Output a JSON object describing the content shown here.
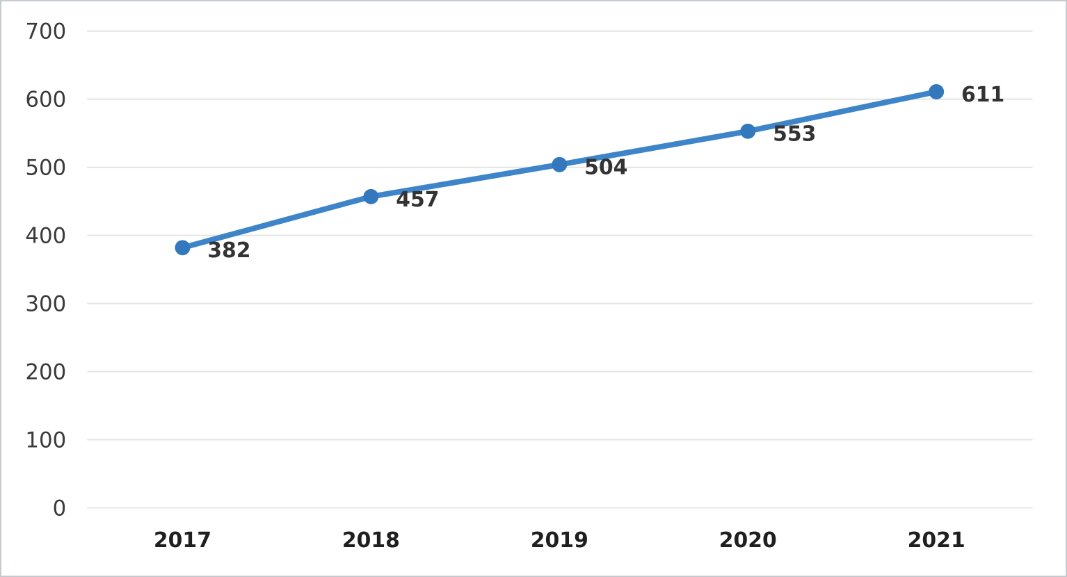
{
  "chart_data": {
    "type": "line",
    "categories": [
      "2017",
      "2018",
      "2019",
      "2020",
      "2021"
    ],
    "values": [
      382,
      457,
      504,
      553,
      611
    ],
    "data_labels": [
      "382",
      "457",
      "504",
      "553",
      "611"
    ],
    "title": "",
    "xlabel": "",
    "ylabel": "",
    "ylim": [
      0,
      700
    ],
    "yticks": [
      700,
      600,
      500,
      400,
      300,
      200,
      100,
      0
    ],
    "grid": true,
    "legend": "none",
    "line_color": "#3d85c8",
    "marker_color": "#3378bd",
    "gridline_color": "#e4e4e4",
    "data_label_color": "#333333",
    "axis_label_color": "#1f1f1f",
    "tick_label_color": "#3a3a3a"
  }
}
